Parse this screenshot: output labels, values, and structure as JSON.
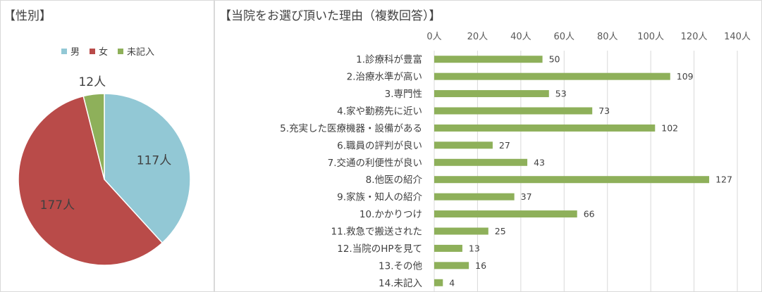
{
  "pie_title": "【性別】",
  "bar_title": "【当院をお選び頂いた理由（複数回答）】",
  "chart_data": [
    {
      "type": "pie",
      "title": "【性別】",
      "legend_position": "top",
      "categories": [
        "男",
        "女",
        "未記入"
      ],
      "values": [
        117,
        177,
        12
      ],
      "data_labels": [
        "117人",
        "177人",
        "12人"
      ],
      "colors": [
        "#92c8d5",
        "#b94b49",
        "#8eb05a"
      ]
    },
    {
      "type": "bar",
      "orientation": "horizontal",
      "title": "【当院をお選び頂いた理由（複数回答）】",
      "categories": [
        "1.診療科が豊富",
        "2.治療水準が高い",
        "3.専門性",
        "4.家や勤務先に近い",
        "5.充実した医療機器・設備がある",
        "6.職員の評判が良い",
        "7.交通の利便性が良い",
        "8.他医の紹介",
        "9.家族・知人の紹介",
        "10.かかりつけ",
        "11.救急で搬送された",
        "12.当院のHPを見て",
        "13.その他",
        "14.未記入"
      ],
      "values": [
        50,
        109,
        53,
        73,
        102,
        27,
        43,
        127,
        37,
        66,
        25,
        13,
        16,
        4
      ],
      "xlim": [
        0,
        140
      ],
      "x_tick_labels": [
        "0人",
        "20人",
        "40人",
        "60人",
        "80人",
        "100人",
        "120人",
        "140人"
      ],
      "x_axis_position": "top",
      "grid": true,
      "bar_color": "#8eb05a"
    }
  ]
}
